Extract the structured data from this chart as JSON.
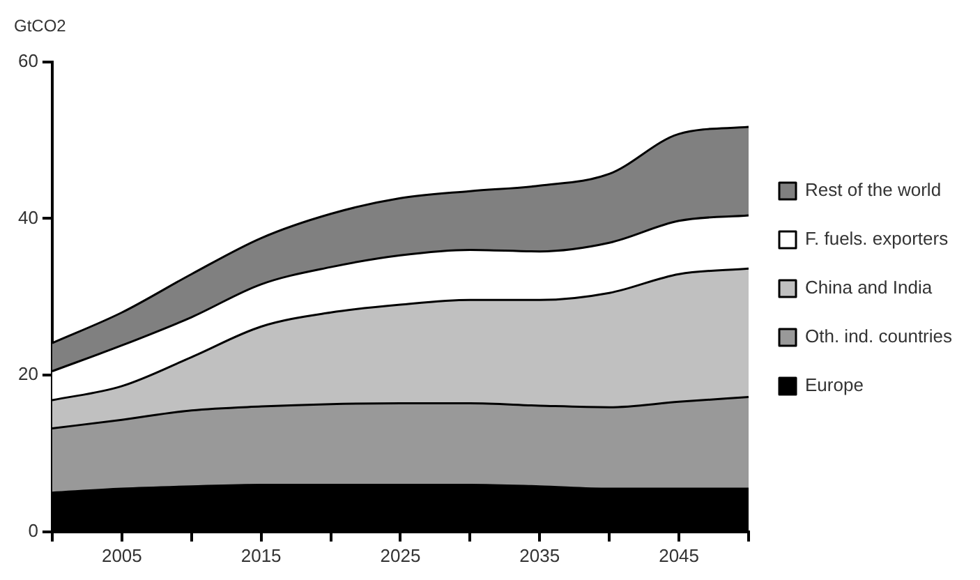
{
  "chart_data": {
    "type": "area",
    "ylabel": "GtCO2",
    "stacked": true,
    "x": [
      2000,
      2005,
      2010,
      2015,
      2020,
      2025,
      2030,
      2035,
      2040,
      2045,
      2050
    ],
    "xlim": [
      2000,
      2050
    ],
    "xticks": [
      {
        "value": 2000,
        "label": null
      },
      2005,
      {
        "value": 2010,
        "label": null
      },
      2015,
      {
        "value": 2020,
        "label": null
      },
      2025,
      {
        "value": 2030,
        "label": null
      },
      2035,
      {
        "value": 2040,
        "label": null
      },
      2045,
      {
        "value": 2050,
        "label": null
      }
    ],
    "ylim": [
      0,
      60
    ],
    "yticks": [
      0,
      20,
      40,
      60
    ],
    "grid": false,
    "legend": "right",
    "series": [
      {
        "name": "Europe",
        "color": "#000000",
        "values": [
          5,
          5.5,
          5.8,
          6,
          6,
          6,
          6,
          5.8,
          5.5,
          5.5,
          5.5
        ]
      },
      {
        "name": "Oth. ind. countries",
        "color": "#999999",
        "values": [
          8.2,
          8.8,
          9.7,
          10,
          10.3,
          10.4,
          10.4,
          10.3,
          10.4,
          11.1,
          11.7
        ]
      },
      {
        "name": "China and India",
        "color": "#c0c0c0",
        "values": [
          3.6,
          4.3,
          6.8,
          10.2,
          11.7,
          12.6,
          13.2,
          13.5,
          14.6,
          16.3,
          16.4
        ]
      },
      {
        "name": "F. fuels. exporters",
        "color": "#ffffff",
        "values": [
          3.7,
          5.2,
          5.1,
          5.4,
          5.8,
          6.3,
          6.4,
          6.2,
          6.4,
          6.8,
          6.8
        ]
      },
      {
        "name": "Rest of the world",
        "color": "#808080",
        "values": [
          3.6,
          4.2,
          5.5,
          5.9,
          6.8,
          7.3,
          7.5,
          8.4,
          8.8,
          11.1,
          11.3
        ]
      }
    ]
  }
}
